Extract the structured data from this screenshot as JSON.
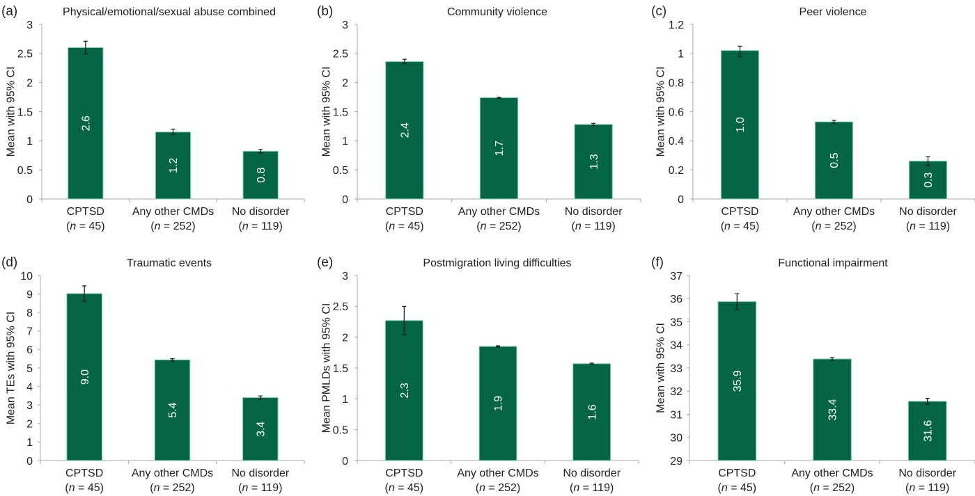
{
  "chart_data": [
    {
      "panel": "(a)",
      "type": "bar",
      "title": "Physical/emotional/sexual abuse combined",
      "ylabel": "Mean with 95% CI",
      "xlabel": "",
      "categories": [
        "CPTSD",
        "Any other CMDs",
        "No disorder"
      ],
      "category_n": [
        "n = 45",
        "n = 252",
        "n = 119"
      ],
      "values": [
        2.6,
        1.15,
        0.82
      ],
      "value_labels": [
        "2.6",
        "1.2",
        "0.8"
      ],
      "ci": [
        [
          2.49,
          2.71
        ],
        [
          1.11,
          1.2
        ],
        [
          0.79,
          0.85
        ]
      ],
      "ylim": [
        0,
        3
      ],
      "yticks": [
        0,
        0.5,
        1,
        1.5,
        2,
        2.5,
        3
      ],
      "ytick_labels": [
        "0",
        "0.5",
        "1",
        "1.5",
        "2",
        "2.5",
        "3"
      ]
    },
    {
      "panel": "(b)",
      "type": "bar",
      "title": "Community violence",
      "ylabel": "Mean with 95% CI",
      "xlabel": "",
      "categories": [
        "CPTSD",
        "Any other CMDs",
        "No disorder"
      ],
      "category_n": [
        "n = 45",
        "n = 252",
        "n = 119"
      ],
      "values": [
        2.36,
        1.74,
        1.28
      ],
      "value_labels": [
        "2.4",
        "1.7",
        "1.3"
      ],
      "ci": [
        [
          2.33,
          2.4
        ],
        [
          1.73,
          1.75
        ],
        [
          1.26,
          1.3
        ]
      ],
      "ylim": [
        0,
        3
      ],
      "yticks": [
        0,
        0.5,
        1,
        1.5,
        2,
        2.5,
        3
      ],
      "ytick_labels": [
        "0",
        "0.5",
        "1",
        "1.5",
        "2",
        "2.5",
        "3"
      ]
    },
    {
      "panel": "(c)",
      "type": "bar",
      "title": "Peer violence",
      "ylabel": "Mean with 95% CI",
      "xlabel": "",
      "categories": [
        "CPTSD",
        "Any other CMDs",
        "No disorder"
      ],
      "category_n": [
        "n = 45",
        "n = 252",
        "n = 119"
      ],
      "values": [
        1.02,
        0.53,
        0.26
      ],
      "value_labels": [
        "1.0",
        "0.5",
        "0.3"
      ],
      "ci": [
        [
          0.98,
          1.05
        ],
        [
          0.52,
          0.54
        ],
        [
          0.23,
          0.29
        ]
      ],
      "ylim": [
        0,
        1.2
      ],
      "yticks": [
        0,
        0.2,
        0.4,
        0.6,
        0.8,
        1,
        1.2
      ],
      "ytick_labels": [
        "0",
        "0.2",
        "0.4",
        "0.6",
        "0.8",
        "1",
        "1.2"
      ]
    },
    {
      "panel": "(d)",
      "type": "bar",
      "title": "Traumatic events",
      "ylabel": "Mean TEs with 95% CI",
      "xlabel": "",
      "categories": [
        "CPTSD",
        "Any other CMDs",
        "No disorder"
      ],
      "category_n": [
        "n = 45",
        "n = 252",
        "n = 119"
      ],
      "values": [
        9.02,
        5.44,
        3.4
      ],
      "value_labels": [
        "9.0",
        "5.4",
        "3.4"
      ],
      "ci": [
        [
          8.6,
          9.44
        ],
        [
          5.38,
          5.5
        ],
        [
          3.32,
          3.49
        ]
      ],
      "ylim": [
        0,
        10
      ],
      "yticks": [
        0,
        1,
        2,
        3,
        4,
        5,
        6,
        7,
        8,
        9,
        10
      ],
      "ytick_labels": [
        "0",
        "1",
        "2",
        "3",
        "4",
        "5",
        "6",
        "7",
        "8",
        "9",
        "10"
      ]
    },
    {
      "panel": "(e)",
      "type": "bar",
      "title": "Postmigration living difficulties",
      "ylabel": "Mean PMLDs  with 95% CI",
      "xlabel": "",
      "categories": [
        "CPTSD",
        "Any other CMDs",
        "No disorder"
      ],
      "category_n": [
        "n = 45",
        "n = 252",
        "n = 119"
      ],
      "values": [
        2.27,
        1.85,
        1.57
      ],
      "value_labels": [
        "2.3",
        "1.9",
        "1.6"
      ],
      "ci": [
        [
          2.04,
          2.5
        ],
        [
          1.84,
          1.86
        ],
        [
          1.56,
          1.58
        ]
      ],
      "ylim": [
        0,
        3
      ],
      "yticks": [
        0,
        0.5,
        1,
        1.5,
        2,
        2.5,
        3
      ],
      "ytick_labels": [
        "0",
        "0.5",
        "1",
        "1.5",
        "2",
        "2.5",
        "3"
      ]
    },
    {
      "panel": "(f)",
      "type": "bar",
      "title": "Functional impairment",
      "ylabel": "Mean with 95% CI",
      "xlabel": "",
      "categories": [
        "CPTSD",
        "Any other CMDs",
        "No disorder"
      ],
      "category_n": [
        "n = 45",
        "n = 252",
        "n = 119"
      ],
      "values": [
        35.87,
        33.39,
        31.56
      ],
      "value_labels": [
        "35.9",
        "33.4",
        "31.6"
      ],
      "ci": [
        [
          35.52,
          36.21
        ],
        [
          33.33,
          33.45
        ],
        [
          31.44,
          31.69
        ]
      ],
      "ylim": [
        29,
        37
      ],
      "yticks": [
        29,
        30,
        31,
        32,
        33,
        34,
        35,
        36,
        37
      ],
      "ytick_labels": [
        "29",
        "30",
        "31",
        "32",
        "33",
        "34",
        "35",
        "36",
        "37"
      ]
    }
  ],
  "colors": {
    "bar_fill": "#036546",
    "bar_edge": "#7fd4ae",
    "axis": "#a8a8a8",
    "error_bar": "#111111",
    "bar_label_text": "#ffffff"
  }
}
